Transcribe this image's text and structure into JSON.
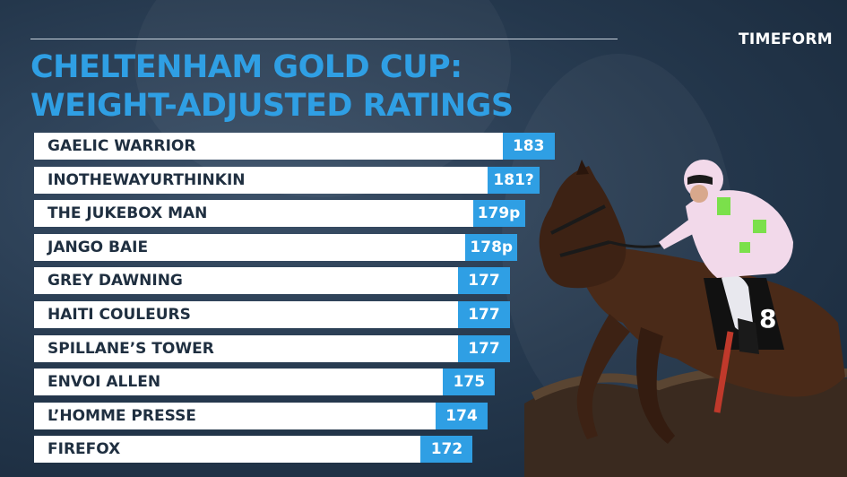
{
  "brand": "TIMEFORM",
  "title_lines": [
    "CHELTENHAM GOLD CUP:",
    "WEIGHT-ADJUSTED RATINGS"
  ],
  "colors": {
    "accent": "#2f9fe4",
    "background": "#24374c",
    "bar": "#ffffff",
    "label": "#1f2f40"
  },
  "chart_data": {
    "type": "bar",
    "orientation": "horizontal",
    "title": "CHELTENHAM GOLD CUP: WEIGHT-ADJUSTED RATINGS",
    "categories": [
      "GAELIC WARRIOR",
      "INOTHEWAYURTHINKIN",
      "THE JUKEBOX MAN",
      "JANGO BAIE",
      "GREY DAWNING",
      "HAITI COULEURS",
      "SPILLANE’S TOWER",
      "ENVOI ALLEN",
      "L’HOMME PRESSE",
      "FIREFOX"
    ],
    "values": [
      183,
      181,
      179,
      178,
      177,
      177,
      177,
      175,
      174,
      172
    ],
    "value_labels": [
      "183",
      "181?",
      "179p",
      "178p",
      "177",
      "177",
      "177",
      "175",
      "174",
      "172"
    ],
    "xlim": [
      150,
      184
    ]
  }
}
